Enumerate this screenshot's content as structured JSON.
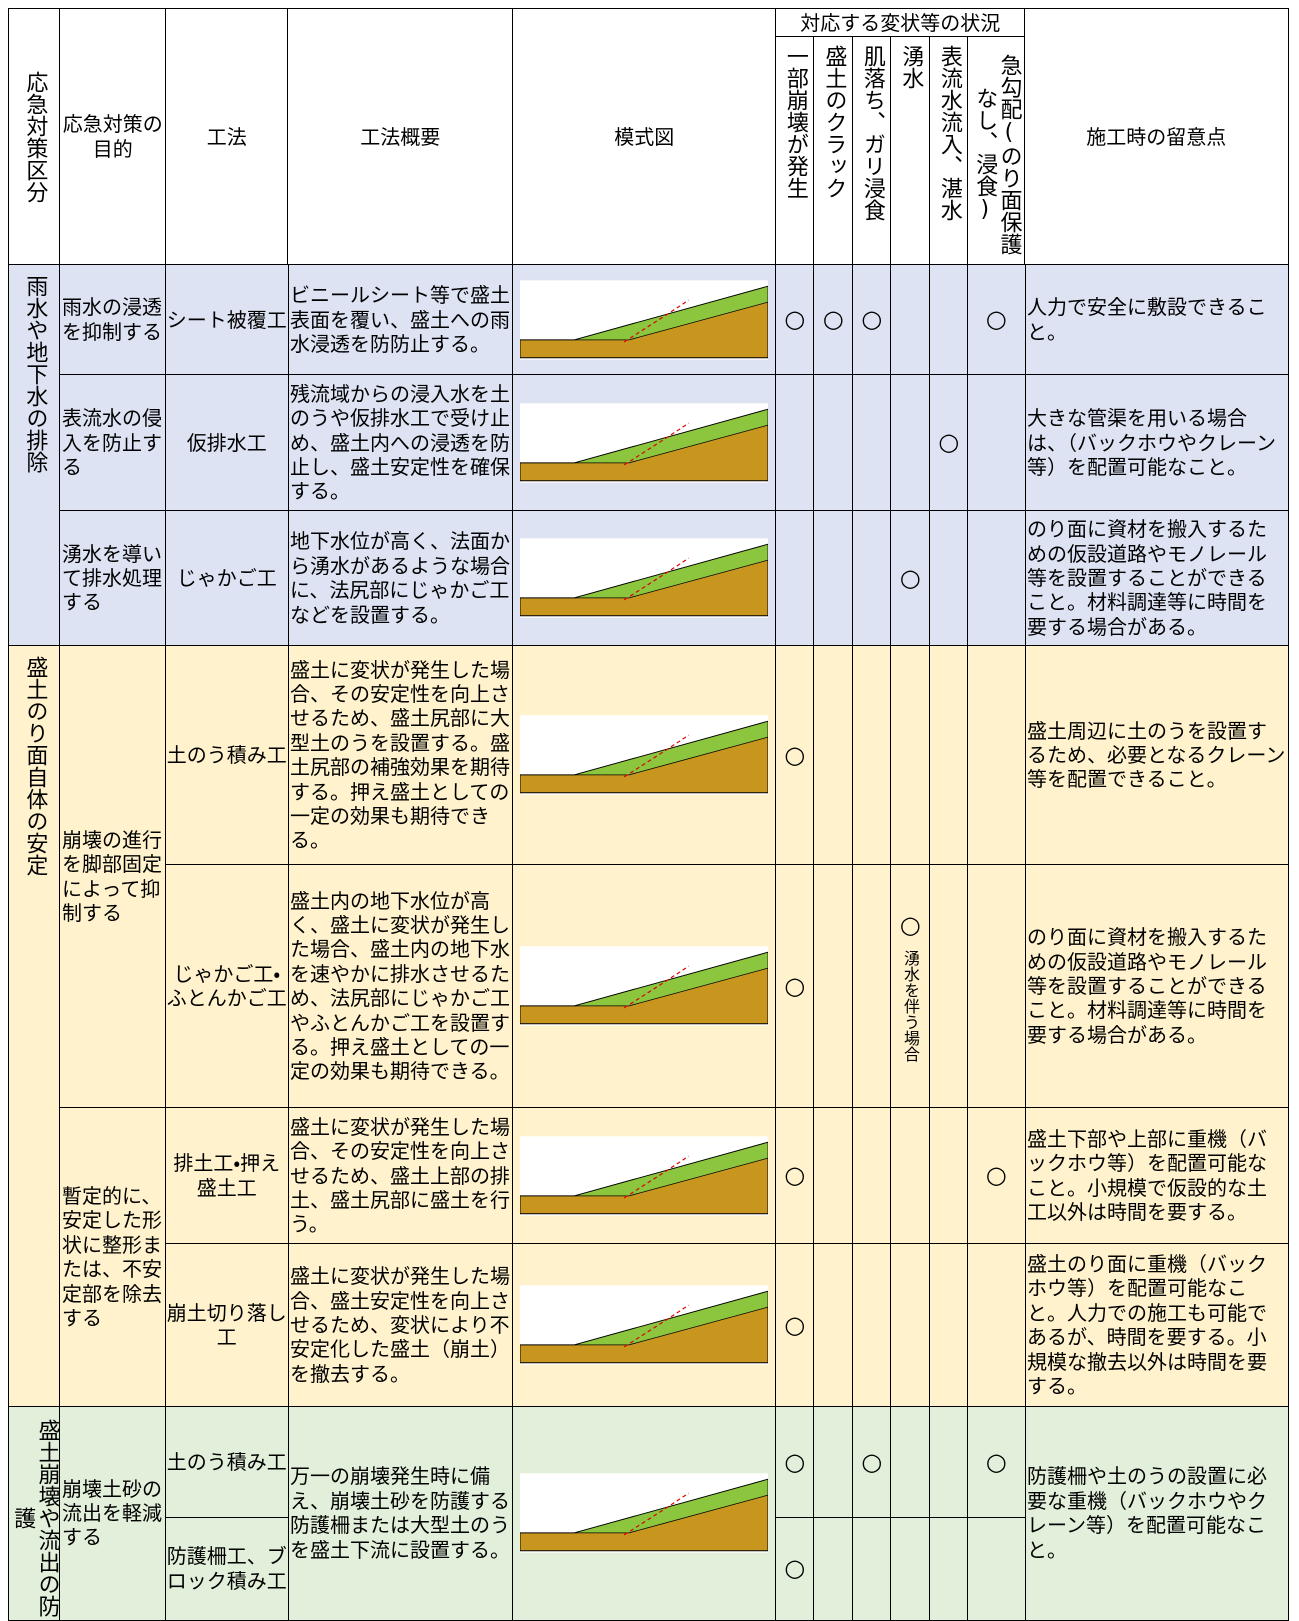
{
  "header": {
    "category": "応急対策区分",
    "purpose": "応急対策の目的",
    "method": "工法",
    "summary": "工法概要",
    "diagram": "模式図",
    "status_group": "対応する変状等の状況",
    "status": [
      "一部崩壊が発生",
      "盛土のクラック",
      "肌落ち、ガリ浸食",
      "湧水",
      "表流水流入、湛水",
      "急勾配(のり面保護なし、浸食)"
    ],
    "notes": "施工時の留意点"
  },
  "groups": [
    {
      "category": "雨水や地下水の排除"
    },
    {
      "category": "盛土のり面自体の安定"
    },
    {
      "category": "盛土崩壊や流出の防護"
    }
  ],
  "rows": [
    {
      "purpose": "雨水の浸透を抑制する",
      "method": "シート被覆工",
      "summary": "ビニールシート等で盛土表面を覆い、盛土への雨水浸透を防防止する。",
      "marks": [
        "○",
        "○",
        "○",
        "",
        "",
        "○"
      ],
      "notes": "人力で安全に敷設できること。"
    },
    {
      "purpose": "表流水の侵入を防止する",
      "method": "仮排水工",
      "summary": "残流域からの浸入水を土のうや仮排水工で受け止め、盛土内への浸透を防止し、盛土安定性を確保する。",
      "marks": [
        "",
        "",
        "",
        "",
        "○",
        ""
      ],
      "notes": "大きな管渠を用いる場合は、（バックホウやクレーン等）を配置可能なこと。"
    },
    {
      "purpose": "湧水を導いて排水処理する",
      "method": "じゃかご工",
      "summary": "地下水位が高く、法面から湧水があるような場合に、法尻部にじゃかご工などを設置する。",
      "marks": [
        "",
        "",
        "",
        "○",
        "",
        ""
      ],
      "notes": "のり面に資材を搬入するための仮設道路やモノレール等を設置することができること。材料調達等に時間を要する場合がある。"
    },
    {
      "purpose": "崩壊の進行を脚部固定によって抑制する",
      "method": "土のう積み工",
      "summary": "盛土に変状が発生した場合、その安定性を向上させるため、盛土尻部に大型土のうを設置する。盛土尻部の補強効果を期待する。押え盛土としての一定の効果も期待できる。",
      "marks": [
        "○",
        "",
        "",
        "",
        "",
        ""
      ],
      "notes": "盛土周辺に土のうを設置するため、必要となるクレーン等を配置できること。"
    },
    {
      "method": "じゃかご工・ふとんかご工",
      "summary": "盛土内の地下水位が高く、盛土に変状が発生した場合、盛土内の地下水を速やかに排水させるため、法尻部にじゃかご工やふとんかご工を設置する。押え盛土としての一定の効果も期待できる。",
      "marks": [
        "○",
        "",
        "",
        "○",
        "",
        ""
      ],
      "mark_note": "湧水を伴う場合",
      "notes": "のり面に資材を搬入するための仮設道路やモノレール等を設置することができること。材料調達等に時間を要する場合がある。"
    },
    {
      "purpose": "暫定的に、安定した形状に整形または、不安定部を除去する",
      "method": "排土工・押え盛土工",
      "summary": "盛土に変状が発生した場合、その安定性を向上させるため、盛土上部の排土、盛土尻部に盛土を行う。",
      "marks": [
        "○",
        "",
        "",
        "",
        "",
        "○"
      ],
      "notes": "盛土下部や上部に重機（バックホウ等）を配置可能なこと。小規模で仮設的な土工以外は時間を要する。"
    },
    {
      "method": "崩土切り落し工",
      "summary": "盛土に変状が発生した場合、盛土安定性を向上させるため、変状により不安定化した盛土（崩土）を撤去する。",
      "marks": [
        "○",
        "",
        "",
        "",
        "",
        ""
      ],
      "notes": "盛土のり面に重機（バックホウ等）を配置可能なこと。人力での施工も可能であるが、時間を要する。小規模な撤去以外は時間を要する。"
    },
    {
      "purpose": "崩壊土砂の流出を軽減する",
      "method": "土のう積み工",
      "summary": "万一の崩壊発生時に備え、崩壊土砂を防護する防護柵または大型土のうを盛土下流に設置する。",
      "marks": [
        "○",
        "",
        "○",
        "",
        "",
        "○"
      ],
      "notes": "防護柵や土のうの設置に必要な重機（バックホウやクレーン等）を配置可能なこと。"
    },
    {
      "method": "防護柵工、ブロック積み工",
      "marks": [
        "○",
        "",
        "",
        "",
        "",
        ""
      ]
    }
  ]
}
